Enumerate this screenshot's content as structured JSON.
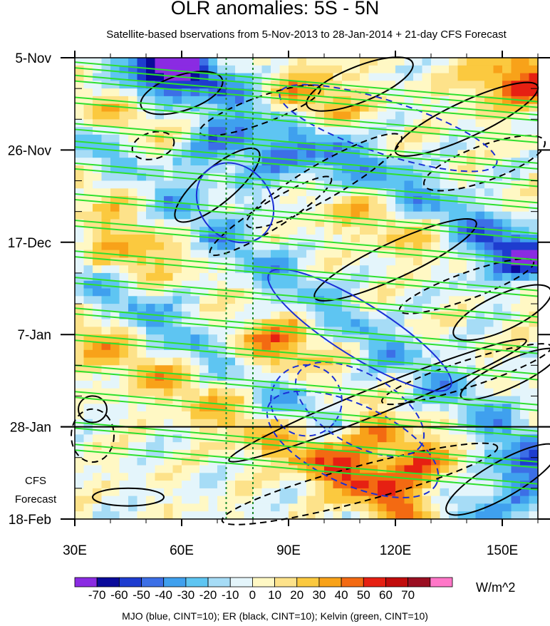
{
  "title": "OLR anomalies: 5S - 5N",
  "subtitle": "Satellite-based bservations from 5-Nov-2013 to 28-Jan-2014 + 21-day CFS Forecast",
  "forecast_label": [
    "CFS",
    "Forecast"
  ],
  "colorbar": {
    "units": "W/m^2",
    "tick_labels": [
      "-70",
      "-60",
      "-50",
      "-40",
      "-30",
      "-20",
      "-10",
      "0",
      "10",
      "20",
      "30",
      "40",
      "50",
      "60",
      "70"
    ],
    "colors": [
      "#8a2be2",
      "#0a0a9a",
      "#1e3ccf",
      "#3c6fe6",
      "#3fa0ee",
      "#5ec5f2",
      "#a6dcf6",
      "#e4f5fb",
      "#fff8c4",
      "#fde28a",
      "#fbc93f",
      "#f8a219",
      "#f36a12",
      "#e62012",
      "#c10c0c",
      "#9a0f22",
      "#ff77c8"
    ]
  },
  "chart_data": {
    "type": "heatmap",
    "title": "OLR anomalies: 5S - 5N",
    "subtitle": "Satellite-based bservations from 5-Nov-2013 to 28-Jan-2014 + 21-day CFS Forecast",
    "x_axis": {
      "range": [
        30,
        160
      ],
      "ticks": [
        30,
        60,
        90,
        120,
        150
      ],
      "tick_labels": [
        "30E",
        "60E",
        "90E",
        "120E",
        "150E"
      ]
    },
    "y_axis": {
      "range": [
        "5-Nov-2013",
        "18-Feb-2014"
      ],
      "tick_labels": [
        "5-Nov",
        "26-Nov",
        "17-Dec",
        "7-Jan",
        "28-Jan",
        "18-Feb"
      ]
    },
    "observation_end": "28-Jan-2014",
    "reference_longitudes": [
      72.5,
      80
    ],
    "legend_note": "MJO (blue, CINT=10); ER (black, CINT=10); Kelvin (green, CINT=10)",
    "contour_series": [
      {
        "name": "MJO",
        "color": "#1a2fd6",
        "cint": 10
      },
      {
        "name": "ER",
        "color": "#000000",
        "cint": 10
      },
      {
        "name": "Kelvin",
        "color": "#2ee02e",
        "cint": 10
      }
    ],
    "anomaly_features": [
      {
        "lon": 55,
        "date": "8-Nov",
        "value": -60
      },
      {
        "lon": 70,
        "date": "25-Nov",
        "value": -50
      },
      {
        "lon": 88,
        "date": "1-Dec",
        "value": -40
      },
      {
        "lon": 40,
        "date": "5-Dec",
        "value": 20
      },
      {
        "lon": 45,
        "date": "20-Dec",
        "value": 30
      },
      {
        "lon": 95,
        "date": "15-Nov",
        "value": 40
      },
      {
        "lon": 155,
        "date": "10-Nov",
        "value": 50
      },
      {
        "lon": 150,
        "date": "22-Dec",
        "value": -50
      },
      {
        "lon": 85,
        "date": "10-Jan",
        "value": 40
      },
      {
        "lon": 110,
        "date": "1-Feb",
        "value": 50
      },
      {
        "lon": 125,
        "date": "8-Feb",
        "value": 60
      },
      {
        "lon": 155,
        "date": "8-Feb",
        "value": -40
      }
    ]
  }
}
